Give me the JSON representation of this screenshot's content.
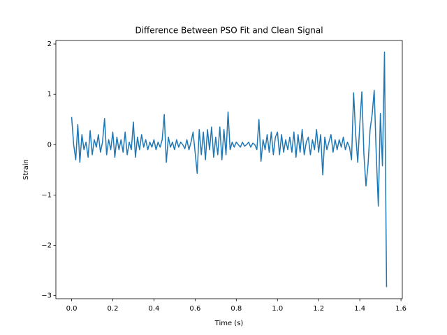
{
  "chart_data": {
    "type": "line",
    "title": "Difference Between PSO Fit and Clean Signal",
    "xlabel": "Time (s)",
    "ylabel": "Strain",
    "xlim": [
      -0.0765,
      1.6065
    ],
    "ylim": [
      -3.06,
      2.07
    ],
    "xticks": [
      {
        "value": 0,
        "label": "0.0"
      },
      {
        "value": 0.2,
        "label": "0.2"
      },
      {
        "value": 0.4,
        "label": "0.4"
      },
      {
        "value": 0.6,
        "label": "0.6"
      },
      {
        "value": 0.8,
        "label": "0.8"
      },
      {
        "value": 1.0,
        "label": "1.0"
      },
      {
        "value": 1.2,
        "label": "1.2"
      },
      {
        "value": 1.4,
        "label": "1.4"
      },
      {
        "value": 1.6,
        "label": "1.6"
      }
    ],
    "yticks": [
      {
        "value": -3,
        "label": "−3"
      },
      {
        "value": -2,
        "label": "−2"
      },
      {
        "value": -1,
        "label": "−1"
      },
      0,
      1,
      2
    ],
    "x": [
      0,
      0.01,
      0.02,
      0.03,
      0.04,
      0.05,
      0.06,
      0.07,
      0.08,
      0.09,
      0.1,
      0.11,
      0.12,
      0.13,
      0.14,
      0.15,
      0.16,
      0.17,
      0.18,
      0.19,
      0.2,
      0.21,
      0.22,
      0.23,
      0.24,
      0.25,
      0.26,
      0.27,
      0.28,
      0.29,
      0.3,
      0.31,
      0.32,
      0.33,
      0.34,
      0.35,
      0.36,
      0.37,
      0.38,
      0.39,
      0.4,
      0.41,
      0.42,
      0.43,
      0.44,
      0.45,
      0.46,
      0.47,
      0.48,
      0.49,
      0.5,
      0.51,
      0.52,
      0.53,
      0.54,
      0.55,
      0.56,
      0.57,
      0.58,
      0.59,
      0.6,
      0.61,
      0.62,
      0.63,
      0.64,
      0.65,
      0.66,
      0.67,
      0.68,
      0.69,
      0.7,
      0.71,
      0.72,
      0.73,
      0.74,
      0.75,
      0.76,
      0.77,
      0.78,
      0.79,
      0.8,
      0.81,
      0.82,
      0.83,
      0.84,
      0.85,
      0.86,
      0.87,
      0.88,
      0.89,
      0.9,
      0.91,
      0.92,
      0.93,
      0.94,
      0.95,
      0.96,
      0.97,
      0.98,
      0.99,
      1.0,
      1.01,
      1.02,
      1.03,
      1.04,
      1.05,
      1.06,
      1.07,
      1.08,
      1.09,
      1.1,
      1.11,
      1.12,
      1.13,
      1.14,
      1.15,
      1.16,
      1.17,
      1.18,
      1.19,
      1.2,
      1.21,
      1.22,
      1.23,
      1.24,
      1.25,
      1.26,
      1.27,
      1.28,
      1.29,
      1.3,
      1.31,
      1.32,
      1.33,
      1.34,
      1.35,
      1.36,
      1.37,
      1.38,
      1.39,
      1.4,
      1.41,
      1.42,
      1.43,
      1.44,
      1.45,
      1.46,
      1.47,
      1.48,
      1.49,
      1.5,
      1.51,
      1.52,
      1.53
    ],
    "series": [
      {
        "color": "#1f77b4",
        "values": [
          0.55,
          0.0,
          -0.3,
          0.4,
          -0.35,
          0.2,
          -0.1,
          0.05,
          -0.25,
          0.28,
          -0.2,
          0.1,
          -0.05,
          0.2,
          -0.15,
          0.05,
          0.52,
          -0.2,
          0.1,
          -0.1,
          0.25,
          -0.25,
          0.15,
          -0.1,
          0.1,
          -0.15,
          0.25,
          -0.2,
          0.05,
          -0.1,
          0.45,
          -0.25,
          0.15,
          -0.1,
          0.2,
          -0.05,
          0.1,
          -0.1,
          0.05,
          -0.05,
          0.1,
          -0.1,
          0.05,
          -0.05,
          0.1,
          0.6,
          -0.35,
          0.15,
          -0.05,
          0.05,
          -0.1,
          0.1,
          -0.05,
          0.05,
          0.0,
          -0.08,
          0.1,
          -0.1,
          0.05,
          0.25,
          -0.15,
          -0.57,
          0.3,
          -0.2,
          0.25,
          -0.3,
          0.3,
          -0.1,
          0.35,
          -0.25,
          0.15,
          -0.2,
          0.35,
          -0.3,
          0.3,
          -0.2,
          0.65,
          -0.1,
          0.05,
          -0.05,
          0.05,
          0.0,
          -0.05,
          0.05,
          -0.03,
          0.0,
          0.05,
          -0.05,
          0.03,
          0.0,
          -0.1,
          0.5,
          -0.33,
          0.1,
          -0.1,
          0.2,
          -0.15,
          0.25,
          -0.2,
          0.15,
          0.25,
          -0.2,
          0.2,
          -0.15,
          0.1,
          -0.1,
          0.15,
          -0.15,
          0.25,
          -0.25,
          0.2,
          -0.15,
          0.3,
          -0.2,
          0.05,
          0.15,
          -0.2,
          0.1,
          -0.1,
          0.3,
          -0.15,
          0.2,
          -0.6,
          0.15,
          -0.1,
          0.05,
          0.2,
          -0.15,
          0.1,
          -0.1,
          0.1,
          -0.05,
          0.15,
          -0.1,
          0.05,
          -0.05,
          -0.3,
          1.03,
          0.2,
          -0.35,
          0.4,
          1.05,
          -0.2,
          -0.82,
          -0.4,
          0.3,
          0.6,
          1.08,
          -0.2,
          -1.22,
          0.62,
          -0.42,
          1.84,
          -2.83
        ]
      }
    ]
  }
}
